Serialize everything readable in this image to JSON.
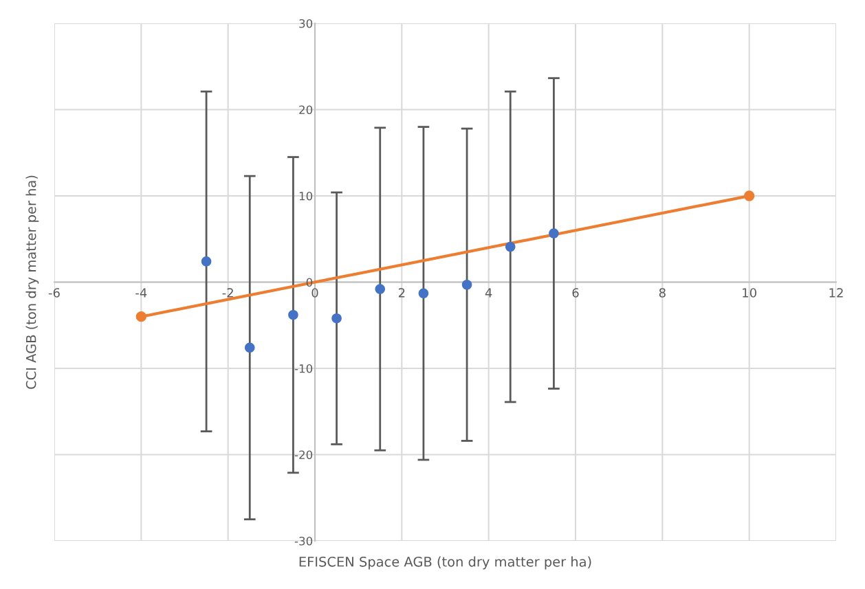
{
  "chart_data": {
    "type": "scatter",
    "xlabel": "EFISCEN Space AGB (ton dry matter per ha)",
    "ylabel": "CCI AGB (ton dry matter per ha)",
    "xlim": [
      -6,
      12
    ],
    "xticks": [
      -6,
      -4,
      -2,
      0,
      2,
      4,
      6,
      8,
      10,
      12
    ],
    "ylim": [
      -30,
      30
    ],
    "yticks": [
      -30,
      -20,
      -10,
      0,
      10,
      20,
      30
    ],
    "grid": true,
    "legend": false,
    "series": [
      {
        "type": "scatter",
        "color": "#4472c4",
        "marker": "circle",
        "x": [
          -2.5,
          -1.5,
          -0.5,
          0.5,
          1.5,
          2.5,
          3.5,
          4.5,
          5.5
        ],
        "values": [
          2.4,
          -7.6,
          -3.8,
          -4.2,
          -0.8,
          -1.3,
          -0.3,
          4.1,
          5.65
        ],
        "errors": [
          19.7,
          19.9,
          18.3,
          14.6,
          18.7,
          19.3,
          18.1,
          18.0,
          18.0
        ]
      },
      {
        "type": "line",
        "color": "#ed7d31",
        "marker": "circle",
        "line_style": "solid",
        "x": [
          -4,
          10
        ],
        "values": [
          -4,
          10
        ]
      }
    ]
  }
}
